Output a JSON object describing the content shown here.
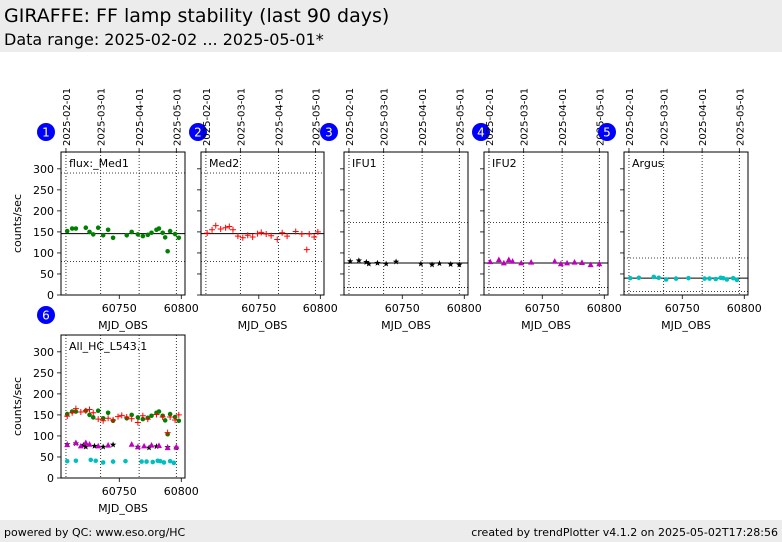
{
  "header": {
    "title": "GIRAFFE: FF lamp stability (last 90 days)",
    "subtitle": "Data range: 2025-02-02 ... 2025-05-01*"
  },
  "footer": {
    "left": "powered by QC: www.eso.org/HC",
    "right": "created by trendPlotter v4.1.2 on 2025-05-02T17:28:56"
  },
  "colors": {
    "series_green": "#008000",
    "series_red": "#ff0000",
    "series_black": "#000000",
    "series_magenta": "#bf00bf",
    "series_cyan": "#00bfbf",
    "badge": "#0000ff"
  },
  "chart_data": [
    {
      "panel": "1",
      "type": "scatter",
      "label": "flux:_Med1",
      "date_ticks": [
        "2025-02-01",
        "2025-03-01",
        "2025-04-01",
        "2025-05-01"
      ],
      "date_tick_mjd": [
        60707,
        60735,
        60766,
        60796
      ],
      "xlabel": "MJD_OBS",
      "ylabel": "counts/sec",
      "xticks": [
        60750,
        60800
      ],
      "yticks": [
        0,
        50,
        100,
        150,
        200,
        250,
        300
      ],
      "xlim": [
        60703,
        60803
      ],
      "ylim": [
        0,
        340
      ],
      "reference_line": 146,
      "limit_lines": [
        290,
        80
      ],
      "series": [
        {
          "marker": "circle",
          "color": "#008000",
          "x": [
            60708,
            60712,
            60715,
            60723,
            60726,
            60729,
            60733,
            60737,
            60741,
            60745,
            60756,
            60760,
            60765,
            60769,
            60773,
            60776,
            60780,
            60782,
            60785,
            60787,
            60789,
            60791,
            60795,
            60798
          ],
          "y": [
            152,
            158,
            158,
            160,
            150,
            144,
            160,
            142,
            155,
            136,
            142,
            150,
            144,
            140,
            143,
            148,
            155,
            158,
            148,
            137,
            104,
            152,
            145,
            136
          ]
        }
      ]
    },
    {
      "panel": "2",
      "type": "scatter",
      "label": "Med2",
      "xlabel": "MJD_OBS",
      "xticks": [
        60750,
        60800
      ],
      "xlim": [
        60703,
        60803
      ],
      "ylim": [
        0,
        340
      ],
      "reference_line": 146,
      "limit_lines": [
        290,
        80
      ],
      "series": [
        {
          "marker": "plus",
          "color": "#ff0000",
          "x": [
            60708,
            60712,
            60715,
            60719,
            60723,
            60726,
            60729,
            60733,
            60737,
            60741,
            60745,
            60749,
            60752,
            60756,
            60760,
            60765,
            60769,
            60773,
            60780,
            60785,
            60789,
            60791,
            60795,
            60798
          ],
          "y": [
            147,
            155,
            165,
            157,
            160,
            163,
            155,
            140,
            136,
            142,
            138,
            146,
            149,
            145,
            141,
            132,
            148,
            140,
            151,
            145,
            108,
            145,
            138,
            150
          ]
        }
      ]
    },
    {
      "panel": "3",
      "type": "scatter",
      "label": "IFU1",
      "xlabel": "MJD_OBS",
      "xticks": [
        60750,
        60800
      ],
      "xlim": [
        60703,
        60803
      ],
      "ylim": [
        0,
        340
      ],
      "reference_line": 76,
      "limit_lines": [
        172,
        18
      ],
      "series": [
        {
          "marker": "star",
          "color": "#000000",
          "x": [
            60708,
            60715,
            60721,
            60723,
            60730,
            60737,
            60745,
            60765,
            60774,
            60780,
            60789,
            60796
          ],
          "y": [
            80,
            82,
            78,
            74,
            76,
            74,
            79,
            74,
            72,
            75,
            73,
            72
          ]
        }
      ]
    },
    {
      "panel": "4",
      "type": "scatter",
      "label": "IFU2",
      "xlabel": "MJD_OBS",
      "xticks": [
        60750,
        60800
      ],
      "xlim": [
        60703,
        60803
      ],
      "ylim": [
        0,
        340
      ],
      "reference_line": 76,
      "limit_lines": [
        172,
        18
      ],
      "series": [
        {
          "marker": "triangle",
          "color": "#bf00bf",
          "x": [
            60708,
            60715,
            60719,
            60723,
            60726,
            60733,
            60741,
            60760,
            60765,
            60770,
            60776,
            60782,
            60789,
            60796
          ],
          "y": [
            79,
            84,
            76,
            84,
            80,
            76,
            78,
            80,
            74,
            76,
            78,
            77,
            72,
            74
          ]
        }
      ]
    },
    {
      "panel": "5",
      "type": "scatter",
      "label": "Argus",
      "xlabel": "MJD_OBS",
      "xticks": [
        60750,
        60800
      ],
      "xlim": [
        60703,
        60803
      ],
      "ylim": [
        0,
        340
      ],
      "reference_line": 40,
      "limit_lines": [
        88,
        8
      ],
      "series": [
        {
          "marker": "circle",
          "color": "#00bfbf",
          "x": [
            60708,
            60715,
            60727,
            60731,
            60737,
            60745,
            60755,
            60768,
            60772,
            60777,
            60781,
            60783,
            60786,
            60791,
            60794
          ],
          "y": [
            40,
            41,
            43,
            41,
            37,
            39,
            40,
            39,
            39,
            38,
            41,
            40,
            37,
            40,
            36
          ]
        }
      ]
    },
    {
      "panel": "6",
      "type": "scatter",
      "label": "All_HC_L543.1",
      "xlabel": "MJD_OBS",
      "ylabel": "counts/sec",
      "xticks": [
        60750,
        60800
      ],
      "yticks": [
        0,
        50,
        100,
        150,
        200,
        250,
        300
      ],
      "xlim": [
        60703,
        60803
      ],
      "ylim": [
        0,
        340
      ],
      "series": [
        {
          "marker": "circle",
          "color": "#008000",
          "x": [
            60708,
            60712,
            60715,
            60723,
            60726,
            60729,
            60733,
            60737,
            60741,
            60745,
            60756,
            60760,
            60765,
            60769,
            60773,
            60776,
            60780,
            60782,
            60785,
            60787,
            60789,
            60791,
            60795,
            60798
          ],
          "y": [
            152,
            158,
            158,
            160,
            150,
            144,
            160,
            142,
            155,
            136,
            142,
            150,
            144,
            140,
            143,
            148,
            155,
            158,
            148,
            137,
            104,
            152,
            145,
            136
          ]
        },
        {
          "marker": "plus",
          "color": "#ff0000",
          "x": [
            60708,
            60712,
            60715,
            60719,
            60723,
            60726,
            60729,
            60733,
            60737,
            60741,
            60745,
            60749,
            60752,
            60756,
            60760,
            60765,
            60769,
            60773,
            60780,
            60785,
            60789,
            60791,
            60795,
            60798
          ],
          "y": [
            147,
            155,
            165,
            157,
            160,
            163,
            155,
            140,
            136,
            142,
            138,
            146,
            149,
            145,
            141,
            132,
            148,
            140,
            151,
            145,
            108,
            145,
            138,
            150
          ]
        },
        {
          "marker": "star",
          "color": "#000000",
          "x": [
            60708,
            60715,
            60721,
            60723,
            60730,
            60737,
            60745,
            60765,
            60774,
            60780,
            60789,
            60796
          ],
          "y": [
            80,
            82,
            78,
            74,
            76,
            74,
            79,
            74,
            72,
            75,
            73,
            72
          ]
        },
        {
          "marker": "triangle",
          "color": "#bf00bf",
          "x": [
            60708,
            60715,
            60719,
            60723,
            60726,
            60733,
            60741,
            60760,
            60765,
            60770,
            60776,
            60782,
            60789,
            60796
          ],
          "y": [
            79,
            84,
            76,
            84,
            80,
            76,
            78,
            80,
            74,
            76,
            78,
            77,
            72,
            74
          ]
        },
        {
          "marker": "circle",
          "color": "#00bfbf",
          "x": [
            60708,
            60715,
            60727,
            60731,
            60737,
            60745,
            60755,
            60768,
            60772,
            60777,
            60781,
            60783,
            60786,
            60791,
            60794
          ],
          "y": [
            40,
            41,
            43,
            41,
            37,
            39,
            40,
            39,
            39,
            38,
            41,
            40,
            37,
            40,
            36
          ]
        }
      ]
    }
  ]
}
